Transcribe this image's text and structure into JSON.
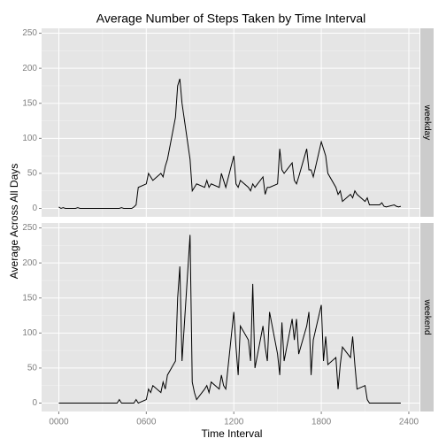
{
  "chart_data": {
    "type": "line",
    "title": "Average Number of Steps Taken by Time Interval",
    "xlabel": "Time Interval",
    "ylabel": "Average Across All Days",
    "facets": true,
    "grid": true,
    "x": [
      0,
      15,
      30,
      45,
      100,
      115,
      130,
      145,
      200,
      215,
      230,
      245,
      300,
      315,
      330,
      345,
      400,
      415,
      430,
      445,
      500,
      515,
      530,
      545,
      600,
      615,
      630,
      645,
      700,
      715,
      730,
      745,
      800,
      815,
      830,
      845,
      900,
      915,
      930,
      945,
      1000,
      1015,
      1030,
      1045,
      1100,
      1115,
      1130,
      1145,
      1200,
      1215,
      1230,
      1245,
      1300,
      1315,
      1330,
      1345,
      1400,
      1415,
      1430,
      1445,
      1500,
      1515,
      1530,
      1545,
      1600,
      1615,
      1630,
      1645,
      1700,
      1715,
      1730,
      1745,
      1800,
      1815,
      1830,
      1845,
      1900,
      1915,
      1930,
      1945,
      2000,
      2015,
      2030,
      2045,
      2100,
      2115,
      2130,
      2145,
      2200,
      2215,
      2230,
      2245,
      2300,
      2315,
      2330,
      2345
    ],
    "xlim": [
      -118,
      2473
    ],
    "xticks": [
      {
        "value": 0,
        "label": "0000"
      },
      {
        "value": 600,
        "label": "0600"
      },
      1200,
      1800,
      2400
    ],
    "ylim": [
      -12,
      257
    ],
    "yticks": [
      0,
      50,
      100,
      150,
      200,
      250
    ],
    "series": [
      {
        "name": "weekday",
        "color": "#000000",
        "values": [
          2,
          0,
          1,
          0,
          0,
          0,
          1,
          0,
          0,
          0,
          0,
          0,
          0,
          0,
          0,
          0,
          0,
          0,
          1,
          0,
          0,
          2,
          5,
          30,
          35,
          50,
          45,
          40,
          50,
          45,
          60,
          70,
          130,
          175,
          185,
          150,
          70,
          25,
          30,
          35,
          30,
          40,
          30,
          35,
          30,
          50,
          40,
          30,
          75,
          35,
          30,
          40,
          30,
          25,
          35,
          30,
          45,
          20,
          30,
          30,
          35,
          85,
          55,
          50,
          65,
          40,
          35,
          45,
          85,
          55,
          55,
          45,
          95,
          85,
          75,
          50,
          30,
          20,
          25,
          10,
          20,
          15,
          25,
          20,
          10,
          15,
          5,
          5,
          5,
          8,
          3,
          2,
          5,
          3,
          2,
          3
        ]
      },
      {
        "name": "weekend",
        "color": "#000000",
        "values": [
          0,
          0,
          0,
          0,
          0,
          0,
          0,
          0,
          0,
          0,
          0,
          0,
          0,
          0,
          0,
          0,
          0,
          5,
          0,
          0,
          0,
          0,
          5,
          0,
          5,
          20,
          15,
          25,
          15,
          30,
          20,
          40,
          60,
          150,
          195,
          60,
          240,
          30,
          15,
          5,
          20,
          25,
          15,
          30,
          20,
          40,
          25,
          20,
          130,
          80,
          40,
          110,
          90,
          60,
          170,
          50,
          110,
          80,
          60,
          130,
          70,
          40,
          115,
          60,
          120,
          90,
          120,
          70,
          110,
          130,
          40,
          90,
          140,
          60,
          95,
          55,
          65,
          20,
          55,
          80,
          65,
          95,
          55,
          20,
          25,
          5,
          0,
          0,
          0,
          0,
          0,
          0,
          0,
          0,
          0,
          0
        ]
      }
    ]
  }
}
